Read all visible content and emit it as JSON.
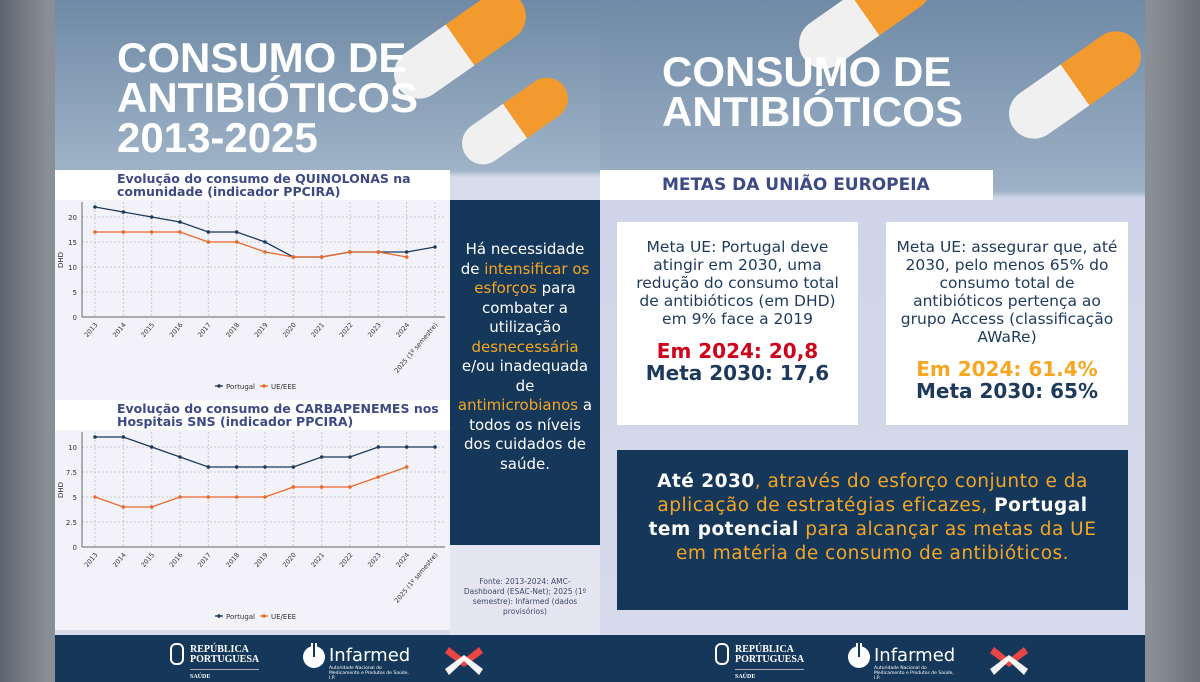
{
  "left": {
    "title": [
      "CONSUMO DE",
      "ANTIBIÓTICOS",
      "2013-2025"
    ],
    "chart1_title": "Evolução do consumo de QUINOLONAS na comunidade (indicador PPCIRA)",
    "chart2_title": "Evolução do consumo de CARBAPENEMES nos Hospitais SNS (indicador PPCIRA)",
    "callout": [
      {
        "t": "Há necessidade de ",
        "hl": false
      },
      {
        "t": "intensificar os esforços",
        "hl": true
      },
      {
        "t": " para combater a utilização ",
        "hl": false
      },
      {
        "t": "desnecessária",
        "hl": true
      },
      {
        "t": " e/ou inadequada de ",
        "hl": false
      },
      {
        "t": "antimicrobianos",
        "hl": true
      },
      {
        "t": " a todos os níveis dos cuidados de saúde.",
        "hl": false
      }
    ],
    "source": "Fonte: 2013-2024: AMC-Dashboard (ESAC-Net); 2025 (1º semestre): Infarmed (dados provisórios)"
  },
  "right": {
    "title": [
      "CONSUMO DE",
      "ANTIBIÓTICOS"
    ],
    "banner": "METAS DA UNIÃO EUROPEIA",
    "card1": {
      "text": "Meta UE: Portugal deve atingir em 2030, uma redução do consumo total de antibióticos (em DHD) em 9% face a 2019",
      "current": "Em 2024: 20,8",
      "target": "Meta 2030: 17,6"
    },
    "card2": {
      "text": "Meta UE: assegurar que, até 2030, pelo menos 65% do consumo total de antibióticos pertença ao grupo Access (classificação AWaRe)",
      "current": "Em 2024: 61.4%",
      "target": "Meta 2030: 65%"
    },
    "conclusion": [
      {
        "t": "Até 2030",
        "b": true,
        "c": "#fff"
      },
      {
        "t": ", através do esforço conjunto e da aplicação de estratégias eficazes, ",
        "b": false,
        "c": "#f5a623"
      },
      {
        "t": "Portugal tem potencial",
        "b": true,
        "c": "#fff"
      },
      {
        "t": " para alcançar as metas da UE em matéria de consumo de antibióticos.",
        "b": false,
        "c": "#f5a623"
      }
    ]
  },
  "footer": {
    "rp_line1": "REPÚBLICA",
    "rp_line2": "PORTUGUESA",
    "rp_sub": "SAÚDE",
    "infarmed": "Infarmed",
    "infarmed_sub": "Autoridade Nacional do Medicamento e Produtos de Saúde, I.P."
  },
  "colors": {
    "navy": "#15375a",
    "orange": "#f5a623",
    "red": "#d0021b",
    "portugal": "#1d3a5c",
    "eu": "#e8692a"
  },
  "chart_data": [
    {
      "type": "line",
      "title": "Evolução do consumo de QUINOLONAS na comunidade (indicador PPCIRA)",
      "ylabel": "DHD",
      "ylim": [
        0,
        23
      ],
      "yticks": [
        0,
        5,
        10,
        15,
        20
      ],
      "grid": true,
      "legend": "bottom",
      "categories": [
        "2013",
        "2014",
        "2015",
        "2016",
        "2017",
        "2018",
        "2019",
        "2020",
        "2021",
        "2022",
        "2023",
        "2024",
        "2025 (1º semestre)"
      ],
      "series": [
        {
          "name": "Portugal",
          "values": [
            22,
            21,
            20,
            19,
            17,
            17,
            15,
            12,
            12,
            13,
            13,
            13,
            14
          ]
        },
        {
          "name": "UE/EEE",
          "values": [
            17,
            17,
            17,
            17,
            15,
            15,
            13,
            12,
            12,
            13,
            13,
            12,
            null
          ]
        }
      ]
    },
    {
      "type": "line",
      "title": "Evolução do consumo de CARBAPENEMES nos Hospitais SNS (indicador PPCIRA)",
      "ylabel": "DHD",
      "ylim": [
        0,
        11.5
      ],
      "yticks": [
        0,
        2.5,
        5,
        7.5,
        10
      ],
      "grid": true,
      "legend": "bottom",
      "categories": [
        "2013",
        "2014",
        "2015",
        "2016",
        "2017",
        "2018",
        "2019",
        "2020",
        "2021",
        "2022",
        "2023",
        "2024",
        "2025 (1º semestre)"
      ],
      "series": [
        {
          "name": "Portugal",
          "values": [
            11,
            11,
            10,
            9,
            8,
            8,
            8,
            8,
            9,
            9,
            10,
            10,
            10
          ]
        },
        {
          "name": "UE/EEE",
          "values": [
            5,
            4,
            4,
            5,
            5,
            5,
            5,
            6,
            6,
            6,
            7,
            8,
            null
          ]
        }
      ]
    }
  ]
}
